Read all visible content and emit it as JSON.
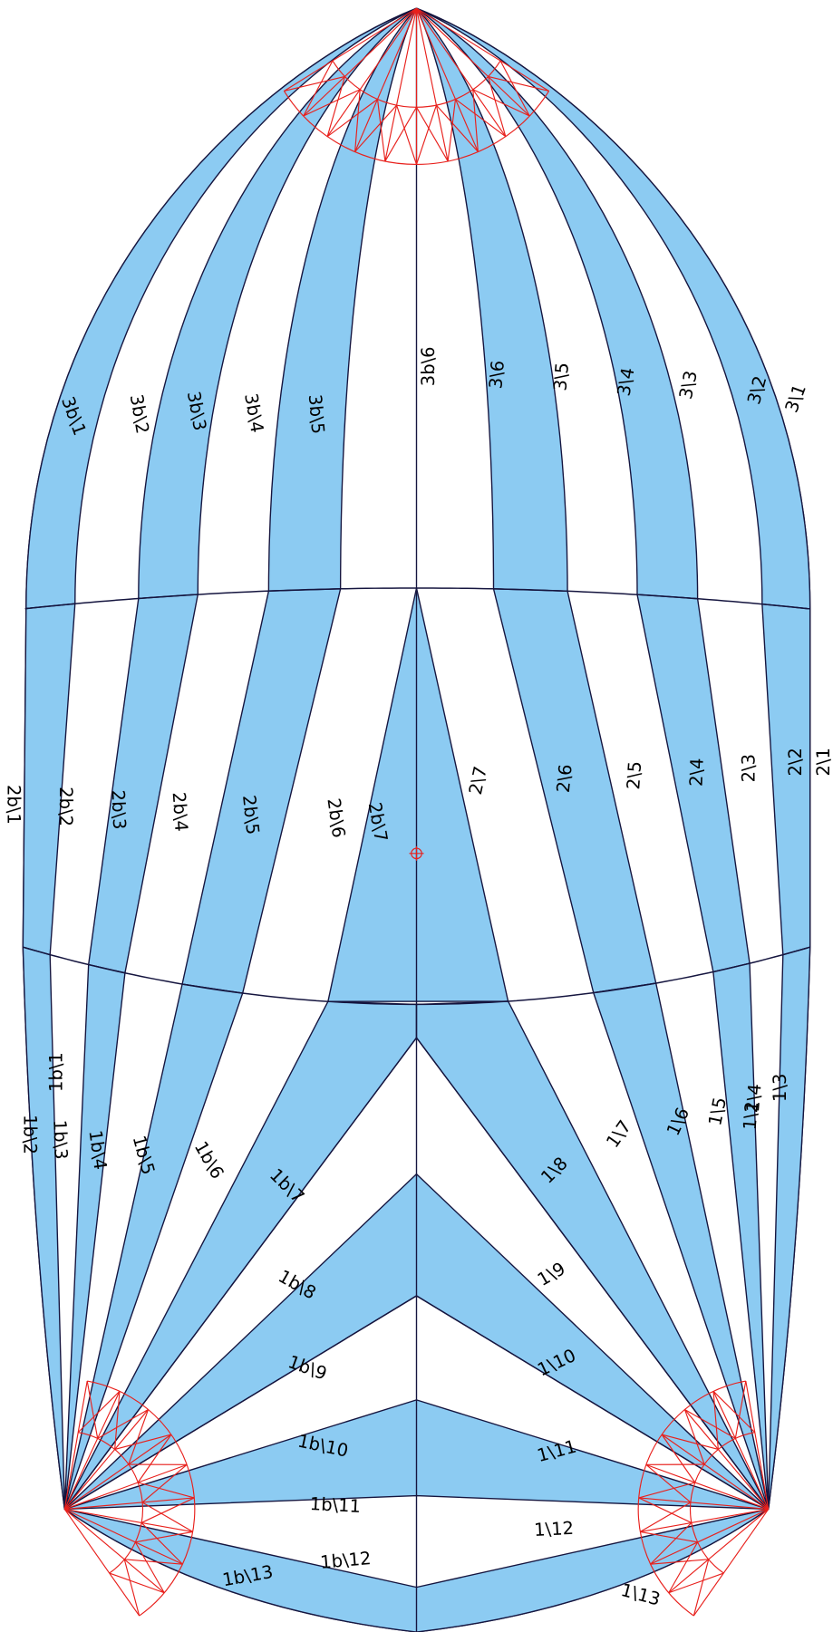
{
  "panel_labels": [
    "3b\\1",
    "3b\\2",
    "3b\\3",
    "3b\\4",
    "3b\\5",
    "3b\\6",
    "3\\6",
    "3\\5",
    "3\\4",
    "3\\3",
    "3\\2",
    "3\\1",
    "2b\\1",
    "2b\\2",
    "2b\\3",
    "2b\\4",
    "2b\\5",
    "2b\\6",
    "2b\\7",
    "2\\7",
    "2\\6",
    "2\\5",
    "2\\4",
    "2\\3",
    "2\\2",
    "2\\1",
    "1b\\1",
    "1b\\2",
    "1b\\3",
    "1b\\4",
    "1b\\5",
    "1b\\6",
    "1b\\7",
    "1b\\8",
    "1b\\9",
    "1b\\10",
    "1b\\11",
    "1b\\12",
    "1b\\13",
    "1\\3",
    "1\\4",
    "1\\2",
    "1\\5",
    "1\\6",
    "1\\7",
    "1\\8",
    "1\\9",
    "1\\10",
    "1\\11",
    "1\\12",
    "1\\13"
  ]
}
